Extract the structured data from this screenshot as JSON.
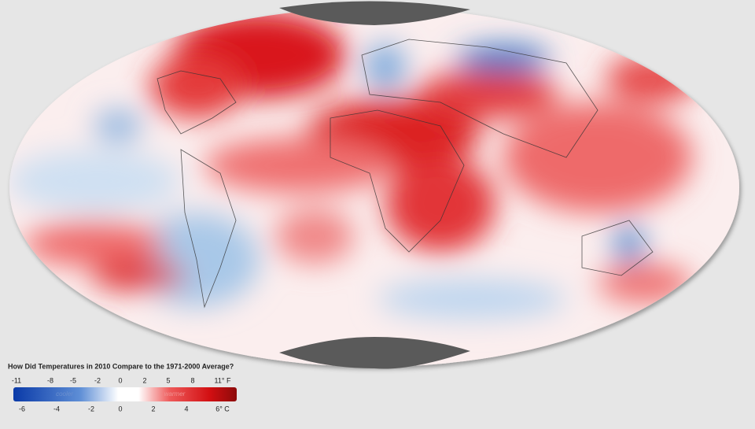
{
  "legend": {
    "title": "How Did Temperatures in 2010 Compare to the 1971-2000 Average?",
    "fahrenheit_labels": [
      "-11",
      "-8",
      "-5",
      "-2",
      "0",
      "2",
      "5",
      "8",
      "11° F"
    ],
    "celsius_labels": [
      "-6",
      "-4",
      "-2",
      "0",
      "2",
      "4",
      "6° C"
    ],
    "cooler": "cooler",
    "warmer": "warmer"
  }
}
